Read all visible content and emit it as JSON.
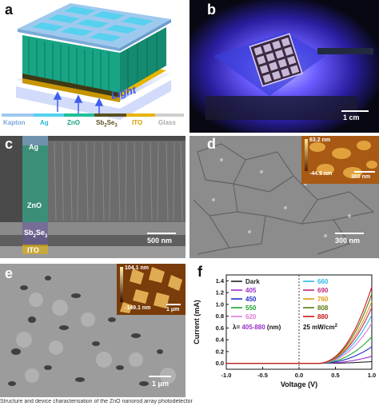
{
  "panels": {
    "a": {
      "label": "a",
      "light_label": "Light",
      "legend": [
        {
          "name": "Kapton",
          "color": "#9ec9ee"
        },
        {
          "name": "Ag",
          "color": "#54d2f0"
        },
        {
          "name": "ZnO",
          "color": "#1fbf9a"
        },
        {
          "name": "Sb2Se3",
          "name_base": "Sb",
          "sub1": "2",
          "mid": "Se",
          "sub2": "3",
          "color": "#5a5020"
        },
        {
          "name": "ITO",
          "color": "#e8b400"
        },
        {
          "name": "Glass",
          "color": "#cfcfcf"
        }
      ]
    },
    "b": {
      "label": "b",
      "scale": "1 cm"
    },
    "c": {
      "label": "c",
      "layers": {
        "ag": "Ag",
        "zno": "ZnO",
        "sb_base": "Sb",
        "sb_sub1": "2",
        "sb_mid": "Se",
        "sb_sub2": "3",
        "ito": "ITO"
      },
      "scale": "500 nm"
    },
    "d": {
      "label": "d",
      "scale": "300 nm",
      "inset": {
        "top": "63.2 nm",
        "bottom": "-44.9 nm",
        "scale": "300 nm"
      }
    },
    "e": {
      "label": "e",
      "scale": "1 μm",
      "inset": {
        "top": "104.1 nm",
        "bottom": "-149.1 nm",
        "scale": "1 μm"
      }
    },
    "f": {
      "label": "f"
    }
  },
  "chart_data": {
    "type": "line",
    "xlabel": "Voltage (V)",
    "ylabel": "Current (mA)",
    "xlim": [
      -1.0,
      1.0
    ],
    "ylim": [
      -0.1,
      1.5
    ],
    "xticks": [
      "-1.0",
      "-0.5",
      "0.0",
      "0.5",
      "1.0"
    ],
    "yticks": [
      "0.0",
      "0.2",
      "0.4",
      "0.6",
      "0.8",
      "1.0",
      "1.2",
      "1.4"
    ],
    "annotation_wavelength_prefix": "λ= ",
    "annotation_wavelength_range": "405-880",
    "annotation_wavelength_suffix": " (nm)",
    "annotation_intensity": "25 mW/cm",
    "annotation_intensity_sup": "2",
    "series": [
      {
        "name": "Dark",
        "color": "#222222",
        "i1": 0.03
      },
      {
        "name": "405",
        "color": "#9b2fc9",
        "i1": 0.12
      },
      {
        "name": "450",
        "color": "#1f2fd0",
        "i1": 0.28
      },
      {
        "name": "550",
        "color": "#1fa32a",
        "i1": 0.45
      },
      {
        "name": "620",
        "color": "#e07ad8",
        "i1": 0.68
      },
      {
        "name": "660",
        "color": "#2fb8e8",
        "i1": 0.82
      },
      {
        "name": "690",
        "color": "#c0287a",
        "i1": 0.95
      },
      {
        "name": "760",
        "color": "#e09a10",
        "i1": 1.05
      },
      {
        "name": "808",
        "color": "#5a7a10",
        "i1": 1.18
      },
      {
        "name": "880",
        "color": "#c81818",
        "i1": 1.3
      }
    ]
  },
  "caption": "Structure and device characterisation of the ZnO nanorod array photodetector"
}
